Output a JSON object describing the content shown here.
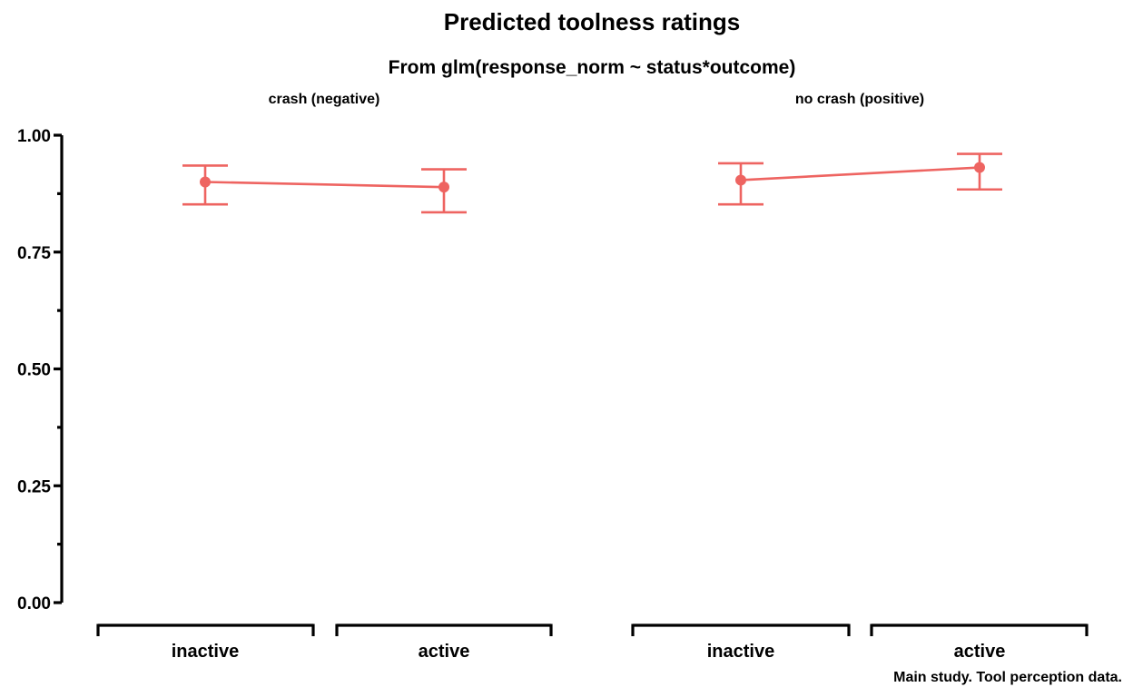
{
  "title": "Predicted toolness ratings",
  "subtitle": "From glm(response_norm ~ status*outcome)",
  "caption": "Main study. Tool perception data.",
  "colors": {
    "series": "#ee6461",
    "axis": "#000000",
    "background": "#ffffff"
  },
  "chart_data": {
    "type": "line",
    "ylim": [
      0,
      1
    ],
    "yticks": [
      {
        "value": 0.0,
        "label": "0.00"
      },
      {
        "value": 0.25,
        "label": "0.25"
      },
      {
        "value": 0.5,
        "label": "0.50"
      },
      {
        "value": 0.75,
        "label": "0.75"
      },
      {
        "value": 1.0,
        "label": "1.00"
      }
    ],
    "yminor": [
      0.125,
      0.375,
      0.625,
      0.875
    ],
    "grid": false,
    "xlabel": "",
    "ylabel": "",
    "categories": [
      "inactive",
      "active"
    ],
    "panels": [
      {
        "strip": "crash (negative)",
        "points": [
          {
            "category": "inactive",
            "estimate": 0.9,
            "lower": 0.852,
            "upper": 0.935
          },
          {
            "category": "active",
            "estimate": 0.889,
            "lower": 0.835,
            "upper": 0.927
          }
        ]
      },
      {
        "strip": "no crash (positive)",
        "points": [
          {
            "category": "inactive",
            "estimate": 0.904,
            "lower": 0.852,
            "upper": 0.94
          },
          {
            "category": "active",
            "estimate": 0.931,
            "lower": 0.884,
            "upper": 0.96
          }
        ]
      }
    ]
  }
}
